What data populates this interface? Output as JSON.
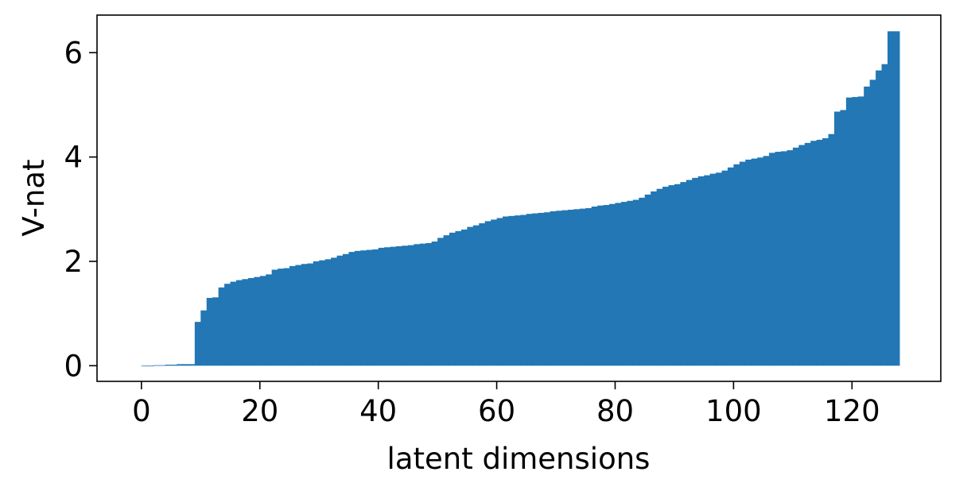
{
  "chart_data": {
    "type": "bar",
    "title": "",
    "xlabel": "latent dimensions",
    "ylabel": "V-nat",
    "xlim": [
      -7.5,
      135
    ],
    "ylim": [
      -0.3,
      6.72
    ],
    "xticks": [
      0,
      20,
      40,
      60,
      80,
      100,
      120
    ],
    "yticks": [
      0,
      2,
      4,
      6
    ],
    "grid": false,
    "legend": "none",
    "bar_color": "#2277b4",
    "x_start": 0,
    "values": [
      0,
      0,
      0.01,
      0.01,
      0.02,
      0.02,
      0.03,
      0.03,
      0.03,
      0.84,
      1.06,
      1.3,
      1.31,
      1.5,
      1.57,
      1.61,
      1.64,
      1.66,
      1.68,
      1.7,
      1.72,
      1.75,
      1.84,
      1.86,
      1.87,
      1.91,
      1.93,
      1.95,
      1.96,
      2.0,
      2.02,
      2.04,
      2.07,
      2.11,
      2.14,
      2.18,
      2.2,
      2.21,
      2.22,
      2.23,
      2.26,
      2.27,
      2.28,
      2.29,
      2.3,
      2.31,
      2.33,
      2.34,
      2.35,
      2.38,
      2.45,
      2.5,
      2.55,
      2.58,
      2.61,
      2.66,
      2.69,
      2.73,
      2.77,
      2.8,
      2.83,
      2.86,
      2.87,
      2.88,
      2.89,
      2.91,
      2.92,
      2.93,
      2.94,
      2.96,
      2.97,
      2.98,
      2.99,
      3.0,
      3.01,
      3.02,
      3.05,
      3.07,
      3.08,
      3.1,
      3.12,
      3.14,
      3.16,
      3.18,
      3.22,
      3.28,
      3.34,
      3.39,
      3.43,
      3.46,
      3.48,
      3.52,
      3.56,
      3.6,
      3.63,
      3.65,
      3.68,
      3.7,
      3.74,
      3.8,
      3.86,
      3.91,
      3.95,
      3.97,
      3.99,
      4.02,
      4.08,
      4.1,
      4.11,
      4.13,
      4.18,
      4.23,
      4.27,
      4.31,
      4.33,
      4.36,
      4.44,
      4.87,
      4.9,
      5.14,
      5.15,
      5.16,
      5.35,
      5.48,
      5.66,
      5.78,
      6.41,
      6.41
    ]
  }
}
